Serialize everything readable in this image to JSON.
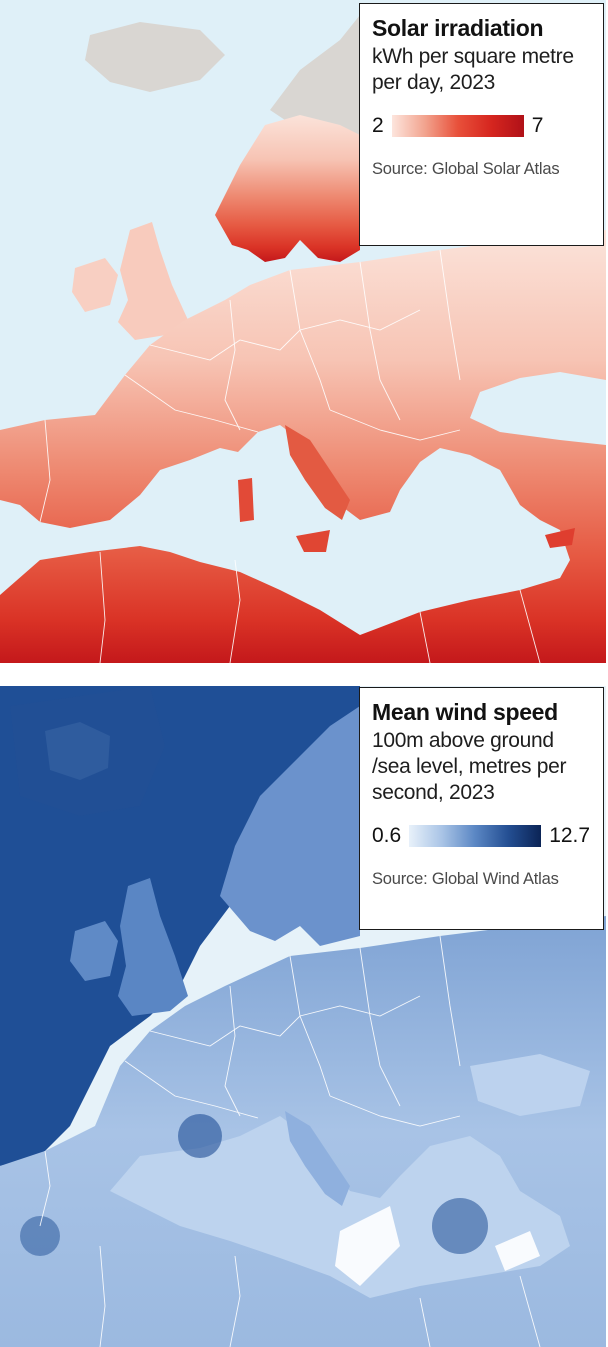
{
  "solar": {
    "title": "Solar irradiation",
    "subtitle": "kWh per square metre per day, 2023",
    "scale_min": "2",
    "scale_max": "7",
    "source": "Source: Global Solar Atlas",
    "colors": {
      "low": "#fde5dd",
      "mid": "#e8503a",
      "high": "#b01118",
      "sea": "#dff0f8",
      "no_data": "#d9d6d2"
    }
  },
  "wind": {
    "title": "Mean wind speed",
    "subtitle": "100m above ground /sea level, metres per second, 2023",
    "scale_min": "0.6",
    "scale_max": "12.7",
    "source": "Source: Global Wind Atlas",
    "colors": {
      "low": "#e8f1fa",
      "mid": "#5b87c4",
      "high": "#0b2456"
    }
  },
  "brand": {
    "accent": "#e3120b"
  }
}
